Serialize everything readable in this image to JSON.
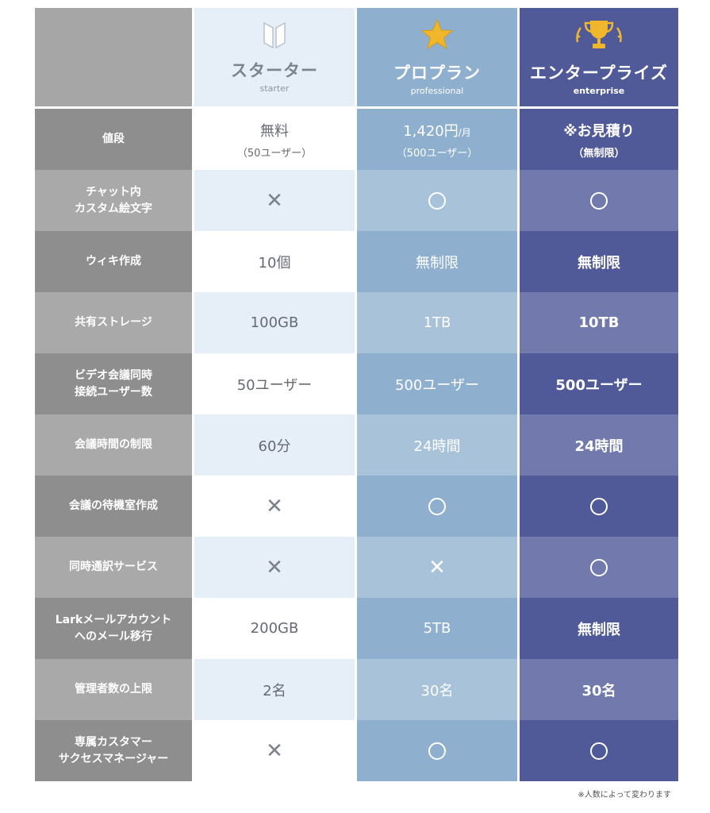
{
  "plans": [
    {
      "name": "スターター",
      "sub": "starter",
      "icon": "shield-bookmark-icon"
    },
    {
      "name": "プロプラン",
      "sub": "professional",
      "icon": "star-icon"
    },
    {
      "name": "エンタープライズ",
      "sub": "enterprise",
      "icon": "trophy-icon"
    }
  ],
  "price": {
    "label": "値段",
    "starter": {
      "main": "無料",
      "sub": "（50ユーザー）"
    },
    "pro": {
      "main": "1,420円",
      "unit": "/月",
      "sub": "（500ユーザー）"
    },
    "enterprise": {
      "main": "※お見積り",
      "sub": "（無制限）"
    }
  },
  "rows": [
    {
      "label": "チャット内\nカスタム絵文字",
      "starter": "×",
      "pro": "○",
      "enterprise": "○"
    },
    {
      "label": "ウィキ作成",
      "starter": "10個",
      "pro": "無制限",
      "enterprise": "無制限"
    },
    {
      "label": "共有ストレージ",
      "starter": "100GB",
      "pro": "1TB",
      "enterprise": "10TB"
    },
    {
      "label": "ビデオ会議同時\n接続ユーザー数",
      "starter": "50ユーザー",
      "pro": "500ユーザー",
      "enterprise": "500ユーザー"
    },
    {
      "label": "会議時間の制限",
      "starter": "60分",
      "pro": "24時間",
      "enterprise": "24時間"
    },
    {
      "label": "会議の待機室作成",
      "starter": "×",
      "pro": "○",
      "enterprise": "○"
    },
    {
      "label": "同時通訳サービス",
      "starter": "×",
      "pro": "×",
      "enterprise": "○"
    },
    {
      "label": "Larkメールアカウント\nへのメール移行",
      "starter": "200GB",
      "pro": "5TB",
      "enterprise": "無制限"
    },
    {
      "label": "管理者数の上限",
      "starter": "2名",
      "pro": "30名",
      "enterprise": "30名"
    },
    {
      "label": "専属カスタマー\nサクセスマネージャー",
      "starter": "×",
      "pro": "○",
      "enterprise": "○"
    }
  ],
  "footnote": "※人数によって変わります",
  "colors": {
    "label_dark": "#8e8e8e",
    "label_light": "#a9a9a9",
    "starter_light": "#e6eef7",
    "pro_dark": "#8eafcd",
    "pro_light": "#a8c2da",
    "enterprise_dark": "#515a98",
    "enterprise_light": "#727aad",
    "gold": "#f0b72c"
  }
}
